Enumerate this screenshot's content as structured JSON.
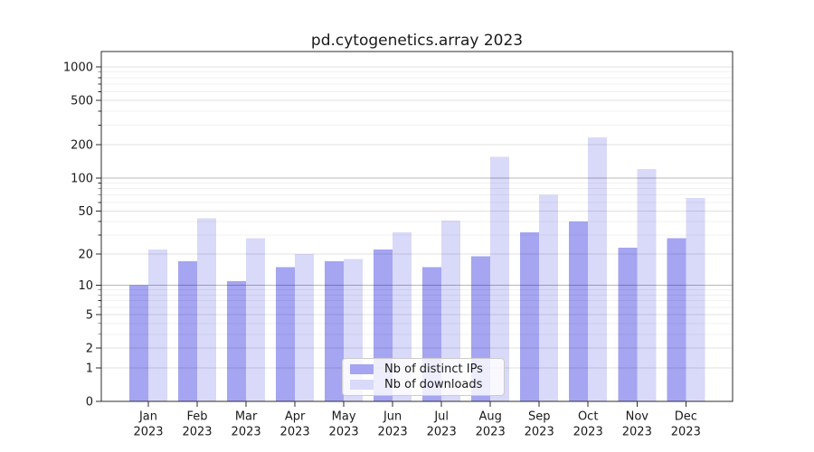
{
  "chart_data": {
    "type": "bar",
    "title": "pd.cytogenetics.array 2023",
    "categories": [
      "Jan",
      "Feb",
      "Mar",
      "Apr",
      "May",
      "Jun",
      "Jul",
      "Aug",
      "Sep",
      "Oct",
      "Nov",
      "Dec"
    ],
    "x_tick_year": "2023",
    "series": [
      {
        "name": "Nb of distinct IPs",
        "color": "#a5a5f2",
        "values": [
          10,
          17,
          11,
          15,
          17,
          22,
          15,
          19,
          32,
          40,
          23,
          28
        ]
      },
      {
        "name": "Nb of downloads",
        "color": "#d9d9f9",
        "values": [
          22,
          43,
          28,
          20,
          18,
          32,
          41,
          155,
          70,
          233,
          120,
          66
        ]
      }
    ],
    "xlabel": "",
    "ylabel": "",
    "yscale": "log1p",
    "ylim": [
      0,
      1375
    ],
    "yticks": [
      0,
      1,
      2,
      5,
      10,
      20,
      50,
      100,
      200,
      500,
      1000
    ],
    "minor_yticks": [
      3,
      4,
      6,
      7,
      8,
      9,
      30,
      40,
      60,
      70,
      80,
      90,
      300,
      400,
      600,
      700,
      800,
      900
    ],
    "grid": "on",
    "legend_position": "lower center"
  },
  "colors": {
    "background": "#ffffff",
    "spine": "#2b2b2b",
    "tick_label": "#1a1a1a",
    "grid_minor": "rgba(0,0,0,0.055)",
    "grid_major": "rgba(0,0,0,0.12)",
    "grid_decade": "rgba(0,0,0,0.28)",
    "legend_border": "#cccccc"
  }
}
